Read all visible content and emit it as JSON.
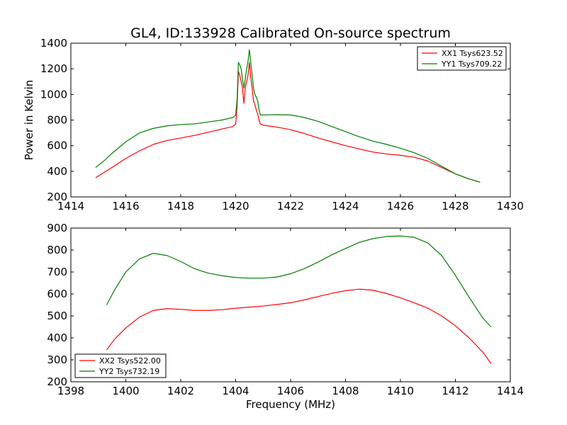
{
  "chart_data": [
    {
      "type": "line",
      "title": "GL4, ID:133928 Calibrated On-source spectrum",
      "xlabel": "",
      "ylabel": "Power in Kelvin",
      "xlim": [
        1414,
        1430
      ],
      "ylim": [
        200,
        1400
      ],
      "xticks": [
        1414,
        1416,
        1418,
        1420,
        1422,
        1424,
        1426,
        1428,
        1430
      ],
      "yticks": [
        200,
        400,
        600,
        800,
        1000,
        1200,
        1400
      ],
      "grid": false,
      "legend_position": "top-right",
      "series": [
        {
          "name": "XX1 Tsys623.52",
          "color": "#ff0000",
          "x": [
            1414.9,
            1415.2,
            1415.5,
            1416.0,
            1416.5,
            1417.0,
            1417.5,
            1418.0,
            1418.5,
            1419.0,
            1419.5,
            1419.9,
            1420.0,
            1420.05,
            1420.1,
            1420.15,
            1420.2,
            1420.25,
            1420.3,
            1420.35,
            1420.4,
            1420.45,
            1420.5,
            1420.55,
            1420.6,
            1420.65,
            1420.7,
            1420.75,
            1420.8,
            1420.85,
            1420.9,
            1421.0,
            1421.5,
            1422.0,
            1422.5,
            1423.0,
            1423.5,
            1424.0,
            1424.5,
            1425.0,
            1425.5,
            1426.0,
            1426.5,
            1427.0,
            1427.5,
            1428.0,
            1428.5,
            1428.9
          ],
          "y": [
            350,
            390,
            430,
            500,
            560,
            610,
            640,
            660,
            680,
            705,
            730,
            750,
            770,
            900,
            1180,
            1150,
            1100,
            1050,
            930,
            1050,
            1100,
            1150,
            1250,
            1130,
            1050,
            950,
            920,
            880,
            850,
            800,
            770,
            760,
            745,
            725,
            695,
            660,
            630,
            600,
            575,
            550,
            535,
            525,
            510,
            480,
            430,
            380,
            340,
            315
          ]
        },
        {
          "name": "YY1 Tsys709.22",
          "color": "#008000",
          "x": [
            1414.9,
            1415.2,
            1415.5,
            1416.0,
            1416.5,
            1417.0,
            1417.5,
            1418.0,
            1418.5,
            1419.0,
            1419.5,
            1419.9,
            1420.0,
            1420.05,
            1420.1,
            1420.15,
            1420.2,
            1420.25,
            1420.3,
            1420.35,
            1420.4,
            1420.45,
            1420.5,
            1420.55,
            1420.6,
            1420.65,
            1420.7,
            1420.75,
            1420.8,
            1420.85,
            1420.9,
            1421.0,
            1421.5,
            1422.0,
            1422.5,
            1423.0,
            1423.5,
            1424.0,
            1424.5,
            1425.0,
            1425.5,
            1426.0,
            1426.5,
            1427.0,
            1427.5,
            1428.0,
            1428.5,
            1428.9
          ],
          "y": [
            430,
            480,
            540,
            630,
            700,
            735,
            755,
            765,
            770,
            785,
            800,
            820,
            840,
            950,
            1250,
            1230,
            1200,
            1120,
            1050,
            1120,
            1200,
            1260,
            1350,
            1250,
            1150,
            1050,
            1000,
            980,
            950,
            880,
            840,
            840,
            842,
            840,
            820,
            790,
            750,
            710,
            670,
            635,
            610,
            580,
            545,
            500,
            440,
            380,
            340,
            315
          ]
        }
      ]
    },
    {
      "type": "line",
      "title": "",
      "xlabel": "Frequency (MHz)",
      "ylabel": "",
      "xlim": [
        1398,
        1414
      ],
      "ylim": [
        200,
        900
      ],
      "xticks": [
        1398,
        1400,
        1402,
        1404,
        1406,
        1408,
        1410,
        1412,
        1414
      ],
      "yticks": [
        200,
        300,
        400,
        500,
        600,
        700,
        800,
        900
      ],
      "grid": false,
      "legend_position": "bottom-left",
      "series": [
        {
          "name": "XX2 Tsys522.00",
          "color": "#ff0000",
          "x": [
            1399.3,
            1399.6,
            1400.0,
            1400.5,
            1401.0,
            1401.5,
            1402.0,
            1402.5,
            1403.0,
            1403.5,
            1404.0,
            1404.5,
            1405.0,
            1405.5,
            1406.0,
            1406.5,
            1407.0,
            1407.5,
            1408.0,
            1408.5,
            1409.0,
            1409.5,
            1410.0,
            1410.5,
            1411.0,
            1411.5,
            1412.0,
            1412.5,
            1413.0,
            1413.3
          ],
          "y": [
            345,
            395,
            445,
            495,
            525,
            533,
            530,
            525,
            525,
            528,
            535,
            540,
            545,
            552,
            560,
            573,
            588,
            603,
            615,
            622,
            617,
            602,
            582,
            560,
            535,
            500,
            455,
            400,
            335,
            283
          ]
        },
        {
          "name": "YY2 Tsys732.19",
          "color": "#008000",
          "x": [
            1399.3,
            1399.6,
            1400.0,
            1400.5,
            1401.0,
            1401.5,
            1402.0,
            1402.5,
            1403.0,
            1403.5,
            1404.0,
            1404.5,
            1405.0,
            1405.5,
            1406.0,
            1406.5,
            1407.0,
            1407.5,
            1408.0,
            1408.5,
            1409.0,
            1409.5,
            1410.0,
            1410.5,
            1411.0,
            1411.5,
            1412.0,
            1412.5,
            1413.0,
            1413.3
          ],
          "y": [
            550,
            620,
            700,
            760,
            785,
            775,
            748,
            715,
            695,
            683,
            675,
            672,
            672,
            677,
            692,
            715,
            745,
            778,
            807,
            835,
            852,
            862,
            864,
            858,
            832,
            775,
            685,
            585,
            490,
            450
          ]
        }
      ]
    }
  ]
}
